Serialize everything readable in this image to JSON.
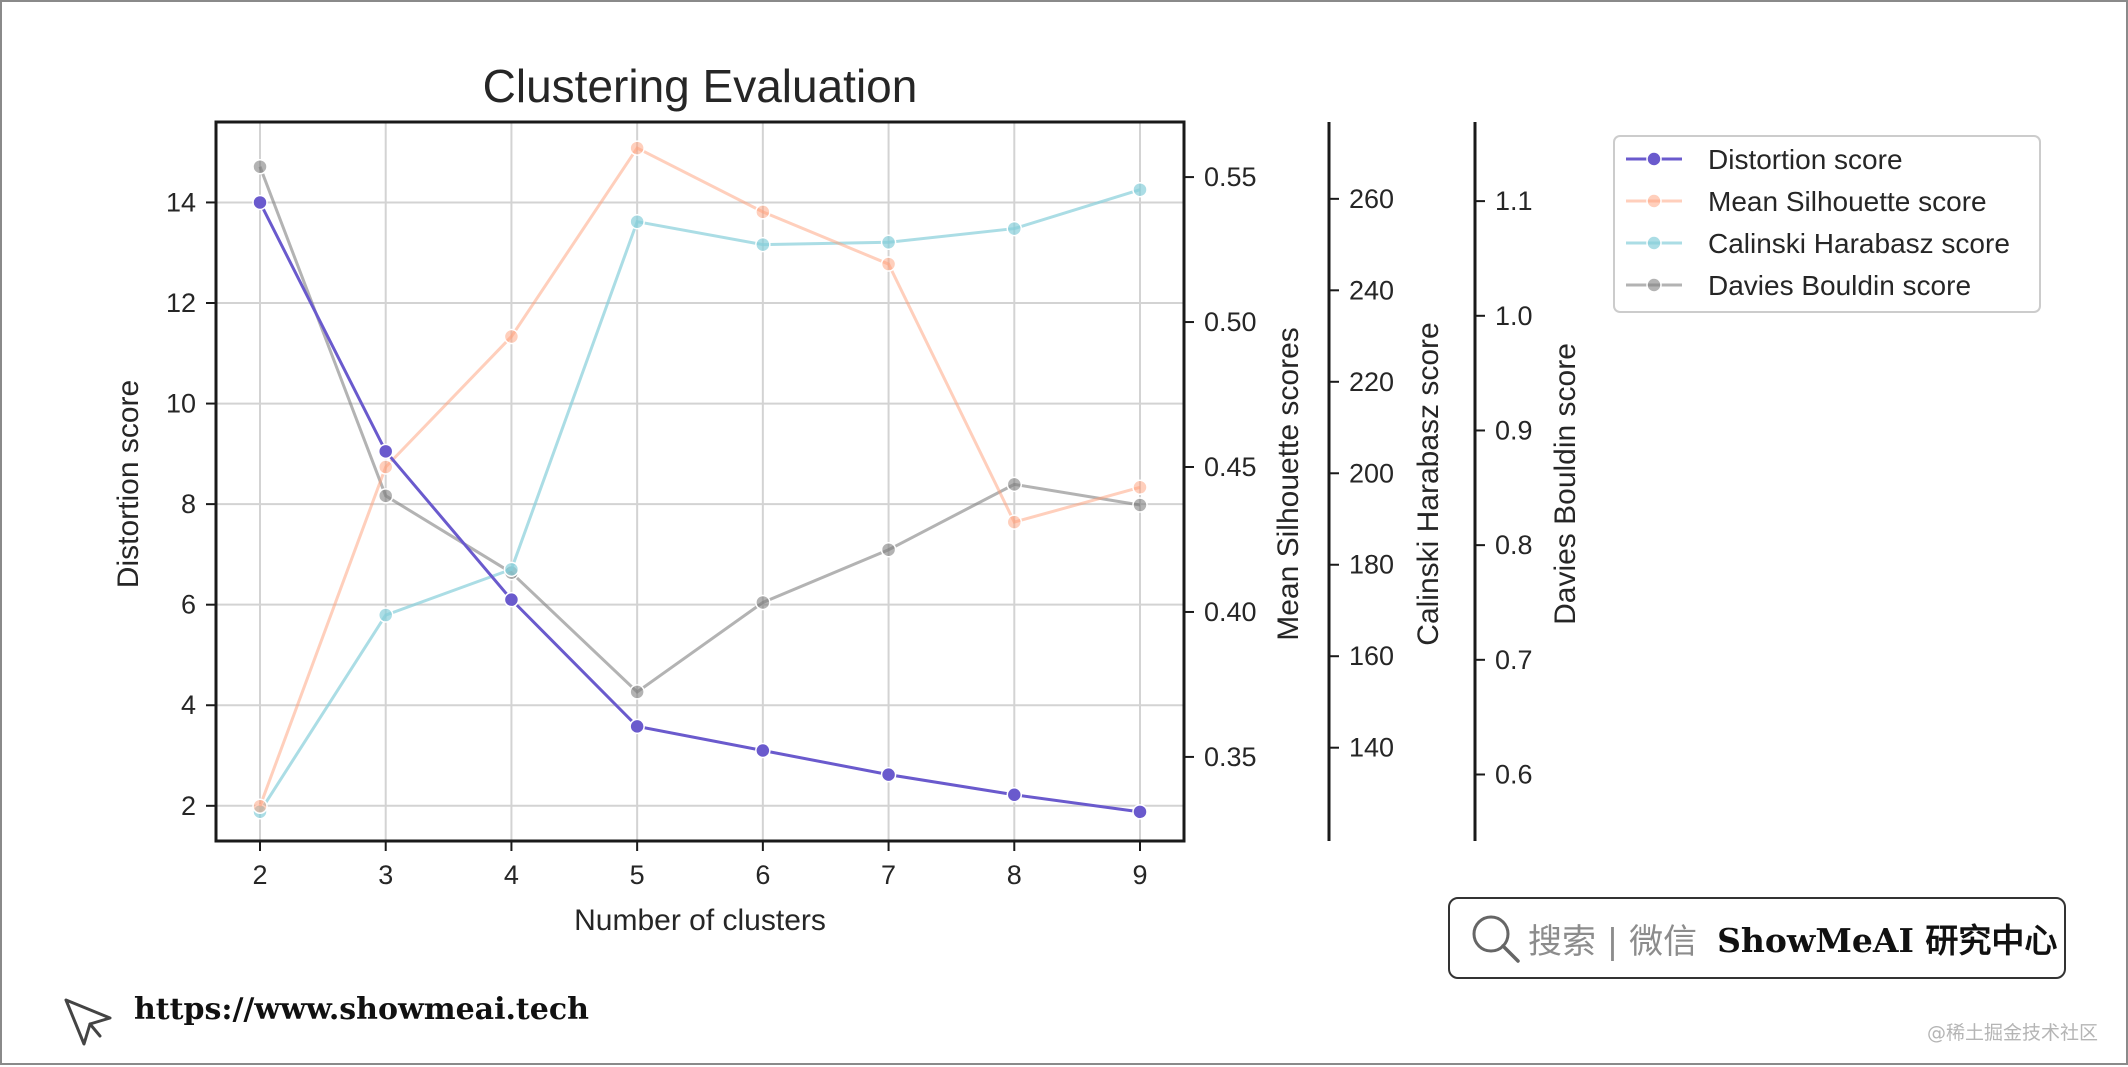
{
  "chart_data": {
    "type": "line",
    "title": "Clustering Evaluation",
    "xlabel": "Number of clusters",
    "x": [
      2,
      3,
      4,
      5,
      6,
      7,
      8,
      9
    ],
    "xlim": [
      1.65,
      9.35
    ],
    "grid": true,
    "legend_placement": "upper-right (outside plot)",
    "axes": {
      "distortion": {
        "label": "Distortion score",
        "ylim": [
          1.3,
          15.6
        ],
        "ticks": [
          2,
          4,
          6,
          8,
          10,
          12,
          14
        ],
        "tick_labels": [
          "2",
          "4",
          "6",
          "8",
          "10",
          "12",
          "14"
        ]
      },
      "silhouette": {
        "label": "Mean Silhouette scores",
        "ylim": [
          0.321,
          0.569
        ],
        "ticks": [
          0.35,
          0.4,
          0.45,
          0.5,
          0.55
        ],
        "tick_labels": [
          "0.35",
          "0.40",
          "0.45",
          "0.50",
          "0.55"
        ]
      },
      "calinski": {
        "label": "Calinski Harabasz score",
        "ylim": [
          119.6,
          276.8
        ],
        "ticks": [
          140,
          160,
          180,
          200,
          220,
          240,
          260
        ],
        "tick_labels": [
          "140",
          "160",
          "180",
          "200",
          "220",
          "240",
          "260"
        ]
      },
      "davies": {
        "label": "Davies Bouldin score",
        "ylim": [
          0.542,
          1.169
        ],
        "ticks": [
          0.6,
          0.7,
          0.8,
          0.9,
          1.0,
          1.1
        ],
        "tick_labels": [
          "0.6",
          "0.7",
          "0.8",
          "0.9",
          "1.0",
          "1.1"
        ]
      }
    },
    "series": [
      {
        "name": "Distortion score",
        "axis": "distortion",
        "color": "#6a5acd",
        "alpha": 1.0,
        "values": [
          14.0,
          9.05,
          6.1,
          3.58,
          3.1,
          2.62,
          2.22,
          1.88
        ]
      },
      {
        "name": "Mean Silhouette score",
        "axis": "silhouette",
        "color": "#ffa07a",
        "alpha": 0.5,
        "values": [
          0.333,
          0.45,
          0.495,
          0.56,
          0.538,
          0.52,
          0.431,
          0.443
        ]
      },
      {
        "name": "Calinski Harabasz score",
        "axis": "calinski",
        "color": "#87ceda",
        "alpha": 0.7,
        "values": [
          126.0,
          169.0,
          179.0,
          255.0,
          250.0,
          250.5,
          253.5,
          262.0
        ]
      },
      {
        "name": "Davies Bouldin score",
        "axis": "davies",
        "color": "#808080",
        "alpha": 0.6,
        "values": [
          1.13,
          0.843,
          0.776,
          0.672,
          0.75,
          0.796,
          0.853,
          0.835
        ]
      }
    ]
  },
  "footer": {
    "search_hint": "搜索 | 微信",
    "brand": "ShowMeAI 研究中心",
    "url": "https://www.showmeai.tech",
    "watermark": "@稀土掘金技术社区"
  },
  "icons": {
    "search": "magnifier-icon",
    "logo": "cursor-arrow-icon"
  }
}
